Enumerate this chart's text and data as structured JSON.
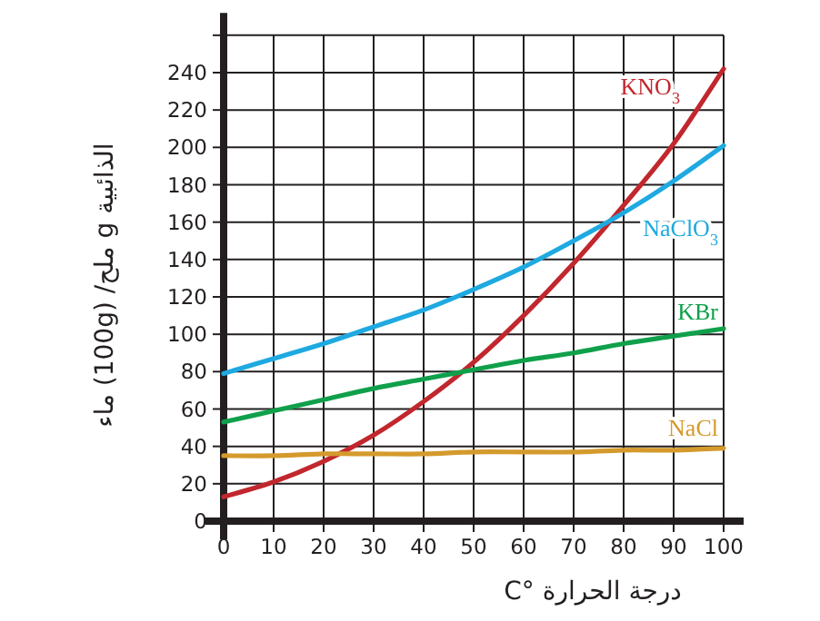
{
  "chart_data": {
    "type": "line",
    "xlabel": "درجة الحرارة °C",
    "ylabel": "الذائبية g ملح/ (100g) ماء",
    "x": [
      0,
      10,
      20,
      30,
      40,
      50,
      60,
      70,
      80,
      90,
      100
    ],
    "series": [
      {
        "name": "KNO$_{3}$",
        "color": "#c1272d",
        "values": [
          13,
          21,
          32,
          46,
          64,
          85,
          110,
          138,
          169,
          202,
          242
        ]
      },
      {
        "name": "NaClO$_{3}$",
        "color": "#1fa9e1",
        "values": [
          79,
          87,
          95,
          104,
          113,
          124,
          136,
          150,
          165,
          182,
          201
        ]
      },
      {
        "name": "KBr",
        "color": "#10a04b",
        "values": [
          53,
          59,
          65,
          71,
          76,
          81,
          86,
          90,
          95,
          99,
          103
        ]
      },
      {
        "name": "NaCl",
        "color": "#d49a2c",
        "values": [
          35,
          35,
          36,
          36,
          36,
          37,
          37,
          37,
          38,
          38,
          39
        ]
      }
    ],
    "xlim": [
      0,
      104
    ],
    "ylim": [
      0,
      272
    ],
    "xticks": [
      0,
      10,
      20,
      30,
      40,
      50,
      60,
      70,
      80,
      90,
      100
    ],
    "yticks": [
      0,
      20,
      40,
      60,
      80,
      100,
      120,
      140,
      160,
      180,
      200,
      220,
      240,
      {
        "value": 260,
        "label": null
      }
    ],
    "grid": true,
    "marker": "none",
    "line_style": "solid"
  }
}
